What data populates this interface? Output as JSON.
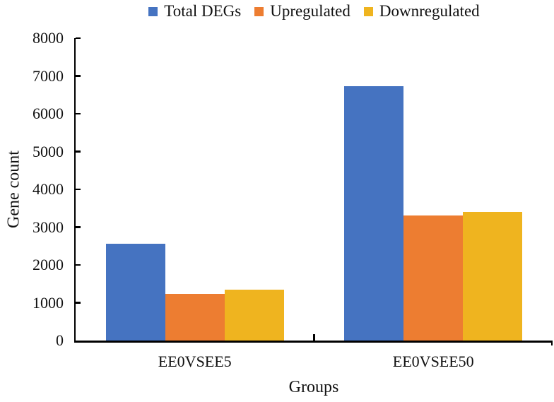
{
  "figure": {
    "background": "#ffffff",
    "axis_color": "#000000",
    "text_color": "#111111"
  },
  "chart_data": {
    "type": "bar",
    "title": "",
    "xlabel": "Groups",
    "ylabel": "Gene count",
    "categories": [
      "EE0VSEE5",
      "EE0VSEE50"
    ],
    "series": [
      {
        "name": "Total DEGs",
        "color": "#4573C1",
        "values": [
          2570,
          6720
        ]
      },
      {
        "name": "Upregulated",
        "color": "#ED7D31",
        "values": [
          1230,
          3310
        ]
      },
      {
        "name": "Downregulated",
        "color": "#EFB41F",
        "values": [
          1340,
          3410
        ]
      }
    ],
    "ylim": [
      0,
      8000
    ],
    "ytick_step": 1000,
    "ytick_labels": [
      "0",
      "1000",
      "2000",
      "3000",
      "4000",
      "5000",
      "6000",
      "7000",
      "8000"
    ],
    "grid": false,
    "legend_position": "top"
  }
}
